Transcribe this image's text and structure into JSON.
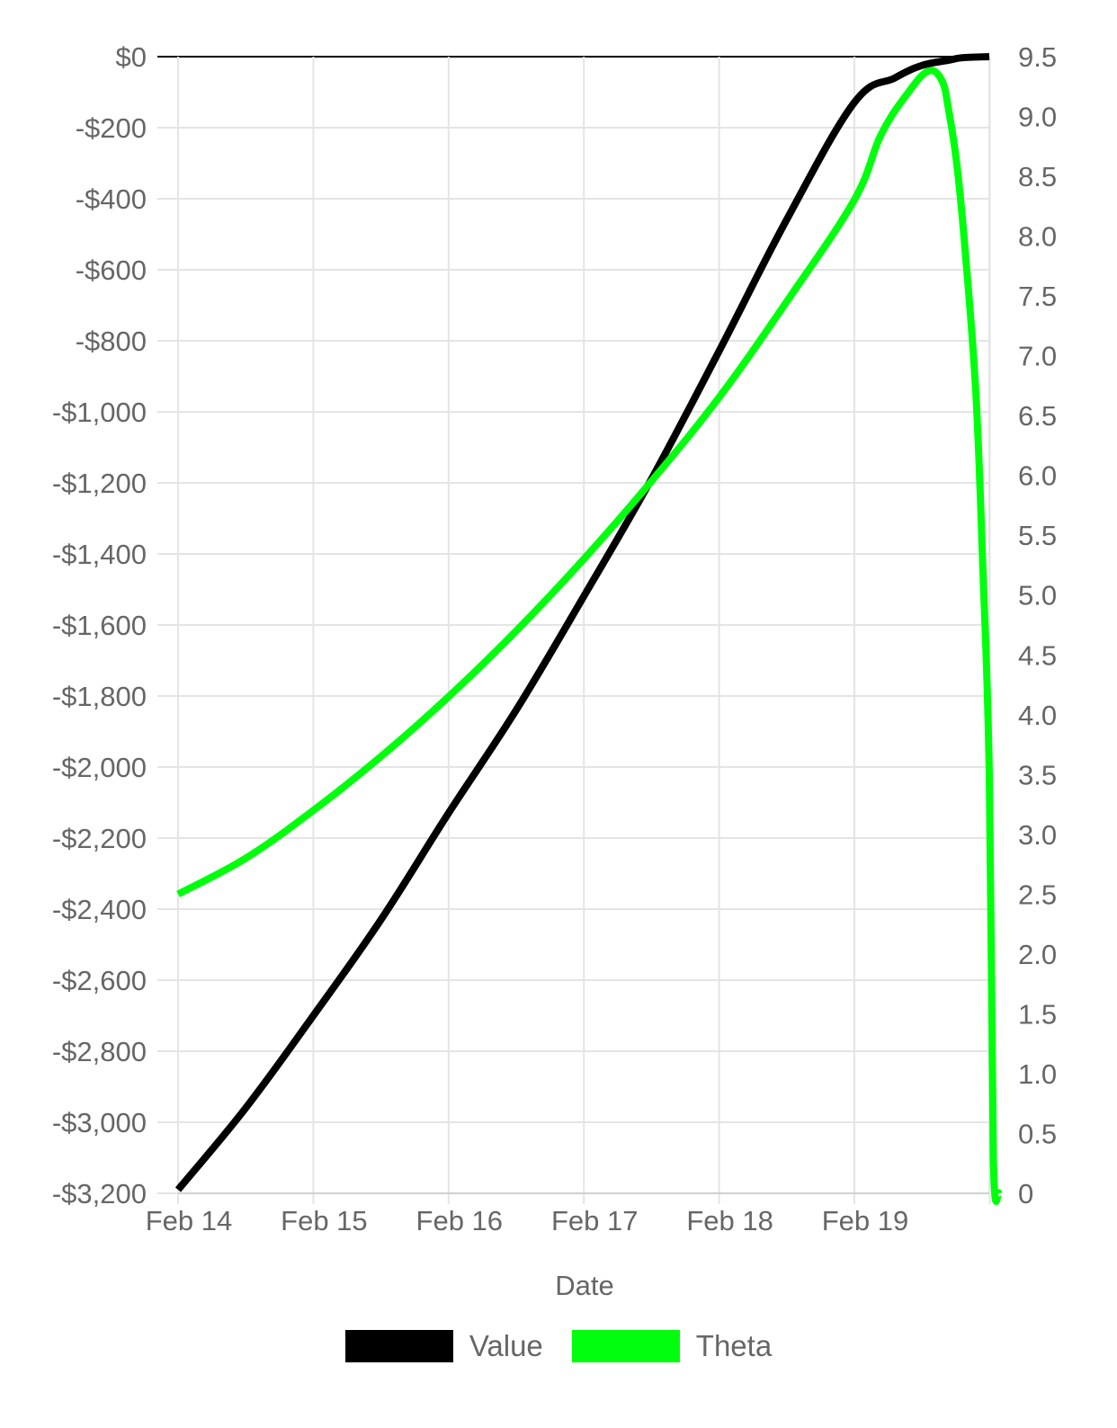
{
  "chart_data": {
    "type": "line",
    "xlabel": "Date",
    "x_tick_labels": [
      "Feb 14",
      "Feb 15",
      "Feb 16",
      "Feb 17",
      "Feb 18",
      "Feb 19"
    ],
    "x_range": [
      0,
      6
    ],
    "y_left": {
      "ticks": [
        "$0",
        "-$200",
        "-$400",
        "-$600",
        "-$800",
        "-$1,000",
        "-$1,200",
        "-$1,400",
        "-$1,600",
        "-$1,800",
        "-$2,000",
        "-$2,200",
        "-$2,400",
        "-$2,600",
        "-$2,800",
        "-$3,000",
        "-$3,200"
      ],
      "range": [
        -3200,
        0
      ]
    },
    "y_right": {
      "ticks": [
        "9.5",
        "9.0",
        "8.5",
        "8.0",
        "7.5",
        "7.0",
        "6.5",
        "6.0",
        "5.5",
        "5.0",
        "4.5",
        "4.0",
        "3.5",
        "3.0",
        "2.5",
        "2.0",
        "1.5",
        "1.0",
        "0.5",
        "0"
      ],
      "range": [
        0,
        9.5
      ]
    },
    "grid": true,
    "legend_position": "bottom",
    "series": [
      {
        "name": "Value",
        "axis": "left",
        "color": "#000000",
        "points": [
          [
            0,
            -3190
          ],
          [
            0.5,
            -2960
          ],
          [
            1,
            -2700
          ],
          [
            1.5,
            -2430
          ],
          [
            2,
            -2130
          ],
          [
            2.5,
            -1840
          ],
          [
            3,
            -1520
          ],
          [
            3.5,
            -1190
          ],
          [
            4,
            -830
          ],
          [
            4.5,
            -460
          ],
          [
            5,
            -130
          ],
          [
            5.3,
            -60
          ],
          [
            5.5,
            -25
          ],
          [
            5.7,
            -10
          ],
          [
            5.8,
            -3
          ],
          [
            6,
            0
          ]
        ]
      },
      {
        "name": "Theta",
        "axis": "right",
        "color": "#00ff0c",
        "points": [
          [
            0,
            2.5
          ],
          [
            0.5,
            2.8
          ],
          [
            1,
            3.2
          ],
          [
            1.5,
            3.65
          ],
          [
            2,
            4.15
          ],
          [
            2.5,
            4.7
          ],
          [
            3,
            5.3
          ],
          [
            3.5,
            5.95
          ],
          [
            4,
            6.65
          ],
          [
            4.5,
            7.45
          ],
          [
            5,
            8.3
          ],
          [
            5.2,
            8.85
          ],
          [
            5.4,
            9.2
          ],
          [
            5.55,
            9.38
          ],
          [
            5.65,
            9.3
          ],
          [
            5.7,
            9.05
          ],
          [
            5.76,
            8.6
          ],
          [
            5.82,
            7.9
          ],
          [
            5.9,
            6.7
          ],
          [
            5.95,
            5.3
          ],
          [
            6,
            3.5
          ],
          [
            6.03,
            0.3
          ],
          [
            6.07,
            0
          ]
        ]
      }
    ]
  }
}
